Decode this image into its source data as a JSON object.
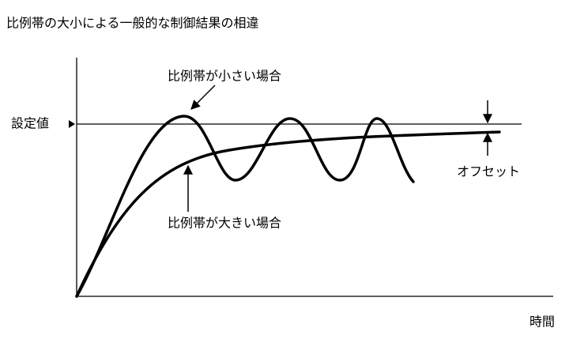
{
  "header": {
    "title": "比例帯の大小による一般的な制御結果の相違"
  },
  "labels": {
    "setpoint": "設定値",
    "small_band": "比例帯が小さい場合",
    "large_band": "比例帯が大きい場合",
    "offset": "オフセット",
    "time": "時間"
  }
}
